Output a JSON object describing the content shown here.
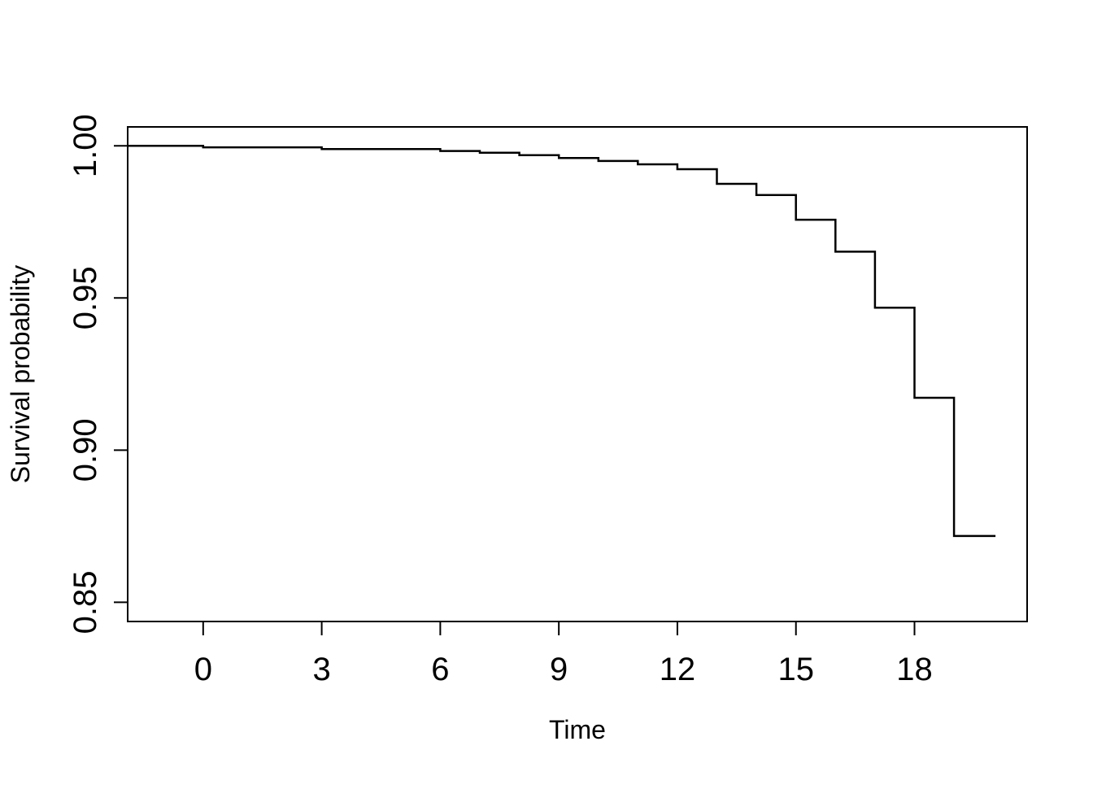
{
  "figure": {
    "background": "#ffffff",
    "line_color": "#000000"
  },
  "chart_data": {
    "type": "line",
    "subtype": "step-survival-curve",
    "title": "",
    "xlabel": "Time",
    "ylabel": "Survival probability",
    "x_tick_labels": [
      "0",
      "3",
      "6",
      "9",
      "12",
      "15",
      "18"
    ],
    "x_tick_values": [
      0,
      3,
      6,
      9,
      12,
      15,
      18
    ],
    "y_tick_labels": [
      "0.85",
      "0.90",
      "0.95",
      "1.00"
    ],
    "y_tick_values": [
      0.85,
      0.9,
      0.95,
      1.0
    ],
    "xlim": [
      -1.91,
      20.85
    ],
    "ylim": [
      0.8437,
      1.0062
    ],
    "grid": false,
    "legend_position": "none",
    "curve": {
      "start": {
        "time": -1.91,
        "survival": 1.0
      },
      "steps": [
        {
          "time": 0,
          "survival": 0.9995
        },
        {
          "time": 3,
          "survival": 0.9989
        },
        {
          "time": 6,
          "survival": 0.9983
        },
        {
          "time": 7,
          "survival": 0.9977
        },
        {
          "time": 8,
          "survival": 0.9969
        },
        {
          "time": 9,
          "survival": 0.996
        },
        {
          "time": 10,
          "survival": 0.995
        },
        {
          "time": 11,
          "survival": 0.9939
        },
        {
          "time": 12,
          "survival": 0.9923
        },
        {
          "time": 13,
          "survival": 0.9875
        },
        {
          "time": 14,
          "survival": 0.9838
        },
        {
          "time": 15,
          "survival": 0.9757
        },
        {
          "time": 16,
          "survival": 0.9652
        },
        {
          "time": 17,
          "survival": 0.9468
        },
        {
          "time": 18,
          "survival": 0.9172
        },
        {
          "time": 19,
          "survival": 0.8718
        }
      ],
      "end_time": 20.05
    }
  }
}
